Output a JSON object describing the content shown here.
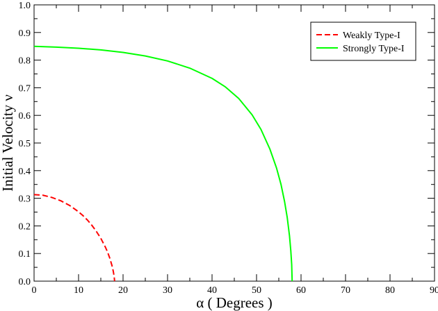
{
  "chart_data": {
    "type": "line",
    "xlabel": "α  ( Degrees )",
    "ylabel": "Initial Velocity  ν",
    "xlim": [
      0,
      90
    ],
    "ylim": [
      0,
      1.0
    ],
    "xticks": [
      "0",
      "10",
      "20",
      "30",
      "40",
      "50",
      "60",
      "70",
      "80",
      "90"
    ],
    "yticks": [
      "0.0",
      "0.1",
      "0.2",
      "0.3",
      "0.4",
      "0.5",
      "0.6",
      "0.7",
      "0.8",
      "0.9",
      "1.0"
    ],
    "grid": false,
    "legend_position": "top-right",
    "series": [
      {
        "name": "Weakly Type-I",
        "color": "#ff0000",
        "style": "dashed",
        "x": [
          0,
          2,
          4,
          6,
          8,
          10,
          11,
          12,
          13,
          14,
          15,
          16,
          16.5,
          17,
          17.5,
          17.8,
          18.0,
          18.1
        ],
        "y": [
          0.313,
          0.311,
          0.303,
          0.291,
          0.274,
          0.251,
          0.237,
          0.221,
          0.202,
          0.18,
          0.155,
          0.124,
          0.106,
          0.084,
          0.057,
          0.036,
          0.017,
          0.0
        ]
      },
      {
        "name": "Strongly Type-I",
        "color": "#00ff00",
        "style": "solid",
        "x": [
          0,
          5,
          10,
          15,
          20,
          25,
          30,
          35,
          40,
          43,
          46,
          49,
          51,
          53,
          54.5,
          55.5,
          56.3,
          56.9,
          57.4,
          57.7,
          57.9,
          58.0
        ],
        "y": [
          0.85,
          0.847,
          0.843,
          0.837,
          0.828,
          0.815,
          0.797,
          0.771,
          0.734,
          0.703,
          0.661,
          0.602,
          0.549,
          0.478,
          0.409,
          0.35,
          0.288,
          0.23,
          0.165,
          0.11,
          0.06,
          0.0
        ]
      }
    ]
  }
}
